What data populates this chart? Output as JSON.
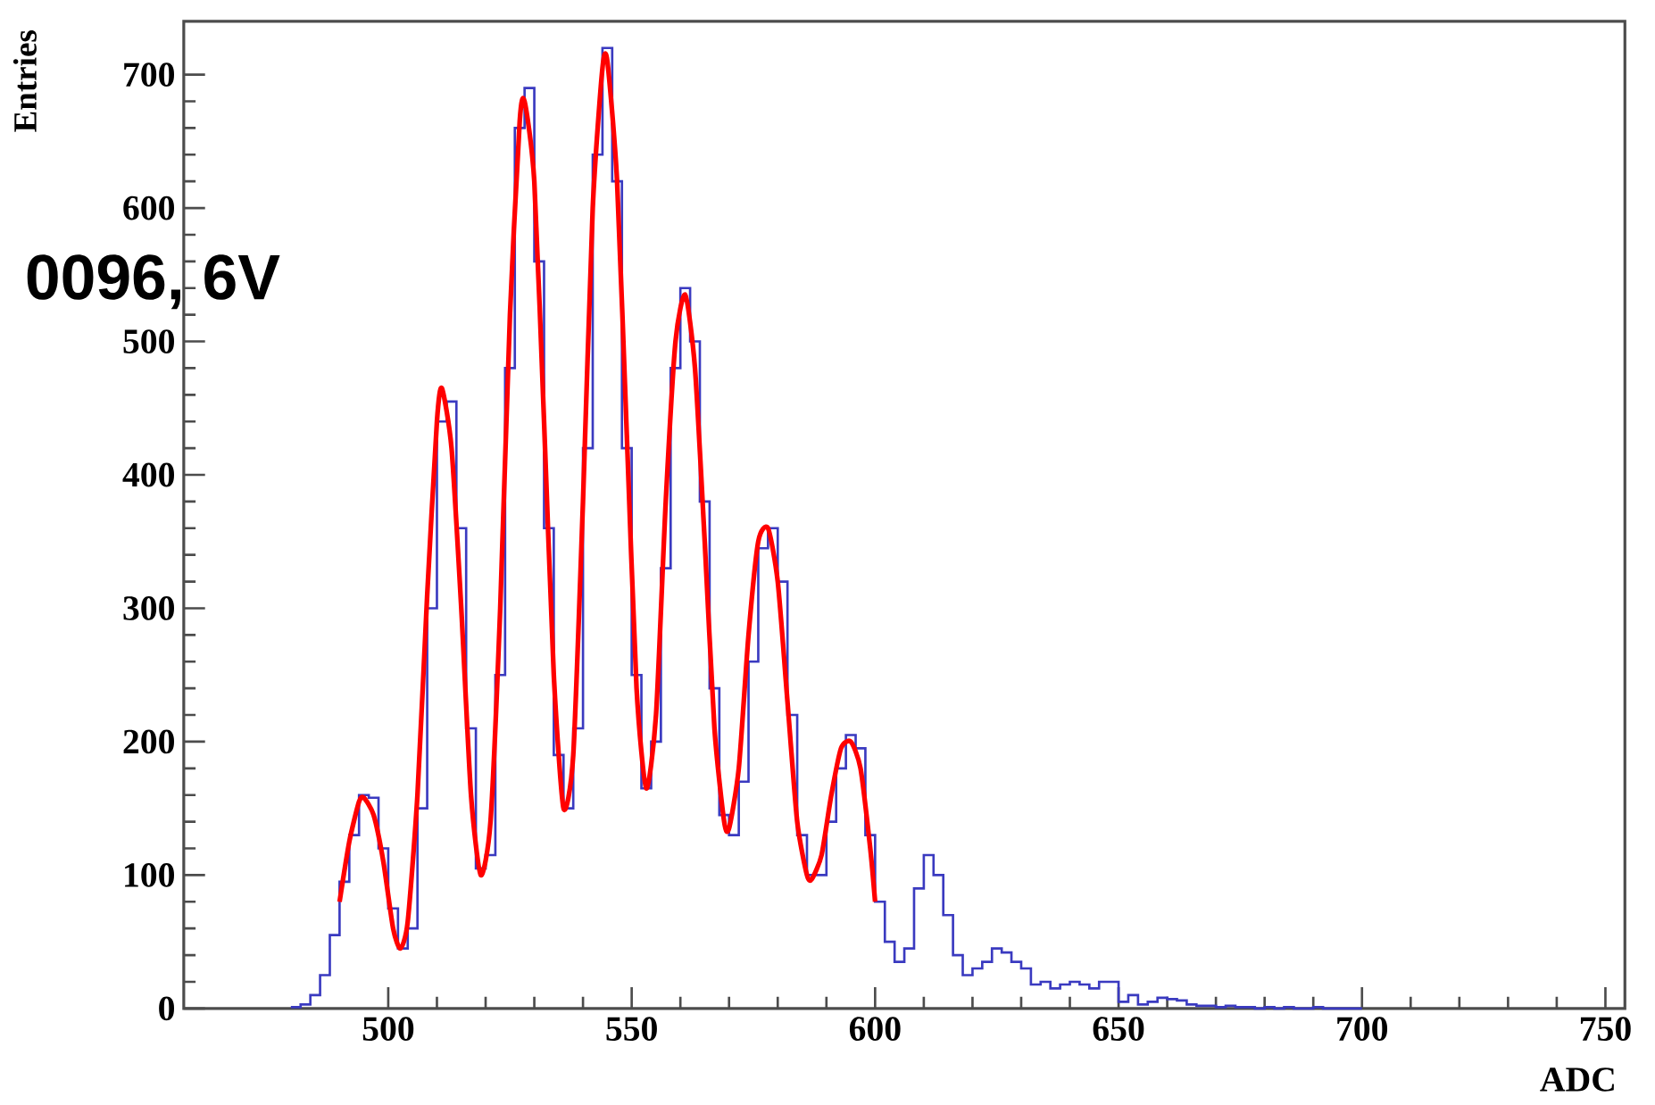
{
  "chart_data": {
    "type": "histogram",
    "xlabel": "ADC",
    "ylabel": "Entries",
    "annotations": [
      "0096, 6V"
    ],
    "xlim": [
      458,
      754
    ],
    "ylim": [
      0,
      740
    ],
    "xticks": [
      500,
      550,
      600,
      650,
      700,
      750
    ],
    "yticks": [
      0,
      100,
      200,
      300,
      400,
      500,
      600,
      700
    ],
    "color": "#3a3ac0",
    "bins": [
      480,
      482,
      484,
      486,
      488,
      490,
      492,
      494,
      496,
      498,
      500,
      502,
      504,
      506,
      508,
      510,
      512,
      514,
      516,
      518,
      520,
      522,
      524,
      526,
      528,
      530,
      532,
      534,
      536,
      538,
      540,
      542,
      544,
      546,
      548,
      550,
      552,
      554,
      556,
      558,
      560,
      562,
      564,
      566,
      568,
      570,
      572,
      574,
      576,
      578,
      580,
      582,
      584,
      586,
      588,
      590,
      592,
      594,
      596,
      598,
      600,
      602,
      604,
      606,
      608,
      610,
      612,
      614,
      616,
      618,
      620,
      622,
      624,
      626,
      628,
      630,
      632,
      634,
      636,
      638,
      640,
      642,
      644,
      646,
      648,
      650,
      652,
      654,
      656,
      658,
      660,
      662,
      664,
      666,
      668,
      670,
      672,
      674,
      676,
      678,
      680,
      682,
      684,
      686,
      688,
      690,
      692,
      694,
      696,
      698,
      700
    ],
    "values": [
      1,
      3,
      10,
      25,
      55,
      95,
      130,
      160,
      158,
      120,
      75,
      45,
      60,
      150,
      300,
      440,
      455,
      360,
      210,
      105,
      115,
      250,
      480,
      660,
      690,
      560,
      360,
      190,
      150,
      210,
      420,
      640,
      720,
      620,
      420,
      250,
      165,
      200,
      330,
      480,
      540,
      500,
      380,
      240,
      145,
      130,
      170,
      260,
      345,
      360,
      320,
      220,
      130,
      100,
      100,
      140,
      180,
      205,
      195,
      130,
      80,
      50,
      35,
      45,
      90,
      115,
      100,
      70,
      40,
      25,
      30,
      35,
      45,
      42,
      35,
      30,
      18,
      20,
      15,
      18,
      20,
      18,
      15,
      20,
      20,
      5,
      10,
      3,
      5,
      8,
      7,
      6,
      3,
      2,
      2,
      1,
      2,
      1,
      1,
      0,
      1,
      0,
      1,
      0,
      0,
      1,
      0,
      0,
      0,
      0
    ],
    "series": [
      {
        "type": "line",
        "color": "#ff0000",
        "x": [
          490,
          492,
          494,
          495,
          497,
          499,
          501,
          502.5,
          504,
          506,
          508,
          510,
          511,
          513,
          515,
          517,
          519,
          521,
          523,
          525,
          527,
          528,
          530,
          532,
          534,
          536,
          538,
          540,
          542,
          544,
          545,
          547,
          549,
          551,
          553,
          555,
          557,
          559,
          561,
          563,
          565,
          567,
          569,
          570,
          572,
          574,
          576,
          578,
          580,
          582,
          584,
          586,
          587,
          589,
          591,
          593,
          595,
          597,
          599,
          600
        ],
        "values": [
          80,
          125,
          155,
          158,
          145,
          110,
          60,
          45,
          65,
          160,
          310,
          440,
          465,
          420,
          300,
          160,
          100,
          140,
          300,
          520,
          665,
          680,
          620,
          440,
          250,
          150,
          190,
          380,
          600,
          705,
          710,
          620,
          430,
          240,
          165,
          220,
          380,
          500,
          535,
          480,
          350,
          210,
          140,
          135,
          180,
          280,
          350,
          360,
          320,
          230,
          140,
          100,
          97,
          115,
          160,
          195,
          200,
          180,
          120,
          80
        ]
      }
    ]
  }
}
